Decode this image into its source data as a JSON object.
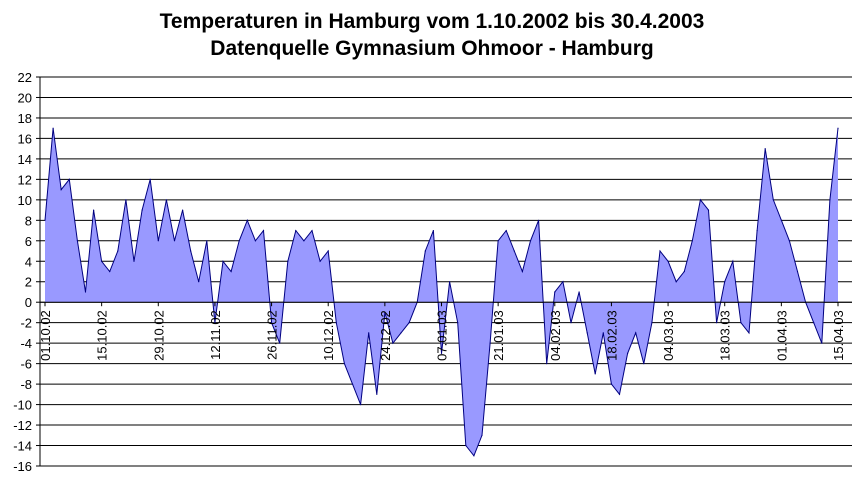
{
  "chart_data": {
    "type": "area",
    "title": "Temperaturen in Hamburg vom 1.10.2002 bis 30.4.2003",
    "subtitle": "Datenquelle Gymnasium Ohmoor - Hamburg",
    "xlabel": "",
    "ylabel": "",
    "x_start": "2002-10-01",
    "x_end": "2003-04-15",
    "ylim": [
      -16,
      22
    ],
    "yticks": [
      -16,
      -14,
      -12,
      -10,
      -8,
      -6,
      -4,
      -2,
      0,
      2,
      4,
      6,
      8,
      10,
      12,
      14,
      16,
      18,
      20,
      22
    ],
    "x_tick_labels": [
      "01.10.02",
      "15.10.02",
      "29.10.02",
      "12.11.02",
      "26.11.02",
      "10.12.02",
      "24.12.02",
      "07.01.03",
      "21.01.03",
      "04.02.03",
      "18.02.03",
      "04.03.03",
      "18.03.03",
      "01.04.03",
      "15.04.03"
    ],
    "grid": "horizontal",
    "fill_color": "#9999ff",
    "line_color": "#000080",
    "series": [
      {
        "x": [
          "2002-10-01",
          "2002-10-03",
          "2002-10-05",
          "2002-10-07",
          "2002-10-09",
          "2002-10-11",
          "2002-10-13",
          "2002-10-15",
          "2002-10-17",
          "2002-10-19",
          "2002-10-21",
          "2002-10-23",
          "2002-10-25",
          "2002-10-27",
          "2002-10-29",
          "2002-10-31",
          "2002-11-02",
          "2002-11-04",
          "2002-11-06",
          "2002-11-08",
          "2002-11-10",
          "2002-11-12",
          "2002-11-14",
          "2002-11-16",
          "2002-11-18",
          "2002-11-20",
          "2002-11-22",
          "2002-11-24",
          "2002-11-26",
          "2002-11-28",
          "2002-11-30",
          "2002-12-02",
          "2002-12-04",
          "2002-12-06",
          "2002-12-08",
          "2002-12-10",
          "2002-12-12",
          "2002-12-14",
          "2002-12-16",
          "2002-12-18",
          "2002-12-20",
          "2002-12-22",
          "2002-12-24",
          "2002-12-26",
          "2002-12-28",
          "2002-12-30",
          "2003-01-01",
          "2003-01-03",
          "2003-01-05",
          "2003-01-07",
          "2003-01-09",
          "2003-01-11",
          "2003-01-13",
          "2003-01-15",
          "2003-01-17",
          "2003-01-19",
          "2003-01-21",
          "2003-01-23",
          "2003-01-25",
          "2003-01-27",
          "2003-01-29",
          "2003-01-31",
          "2003-02-02",
          "2003-02-04",
          "2003-02-06",
          "2003-02-08",
          "2003-02-10",
          "2003-02-12",
          "2003-02-14",
          "2003-02-16",
          "2003-02-18",
          "2003-02-20",
          "2003-02-22",
          "2003-02-24",
          "2003-02-26",
          "2003-02-28",
          "2003-03-02",
          "2003-03-04",
          "2003-03-06",
          "2003-03-08",
          "2003-03-10",
          "2003-03-12",
          "2003-03-14",
          "2003-03-16",
          "2003-03-18",
          "2003-03-20",
          "2003-03-22",
          "2003-03-24",
          "2003-03-26",
          "2003-03-28",
          "2003-03-30",
          "2003-04-01",
          "2003-04-03",
          "2003-04-05",
          "2003-04-07",
          "2003-04-09",
          "2003-04-11",
          "2003-04-13",
          "2003-04-15"
        ],
        "values": [
          8,
          17,
          11,
          12,
          6,
          1,
          9,
          4,
          3,
          5,
          10,
          4,
          9,
          12,
          6,
          10,
          6,
          9,
          5,
          2,
          6,
          -2,
          4,
          3,
          6,
          8,
          6,
          7,
          -2,
          -4,
          4,
          7,
          6,
          7,
          4,
          5,
          -2,
          -6,
          -8,
          -10,
          -3,
          -9,
          -1,
          -4,
          -3,
          -2,
          0,
          5,
          7,
          -5,
          2,
          -2,
          -14,
          -15,
          -13,
          -4,
          6,
          7,
          5,
          3,
          6,
          8,
          -6,
          1,
          2,
          -2,
          1,
          -3,
          -7,
          -3,
          -8,
          -9,
          -5,
          -3,
          -6,
          -2,
          5,
          4,
          2,
          3,
          6,
          10,
          9,
          -2,
          2,
          4,
          -2,
          -3,
          7,
          15,
          10,
          8,
          6,
          3,
          0,
          -2,
          -4,
          10,
          17
        ]
      }
    ]
  }
}
